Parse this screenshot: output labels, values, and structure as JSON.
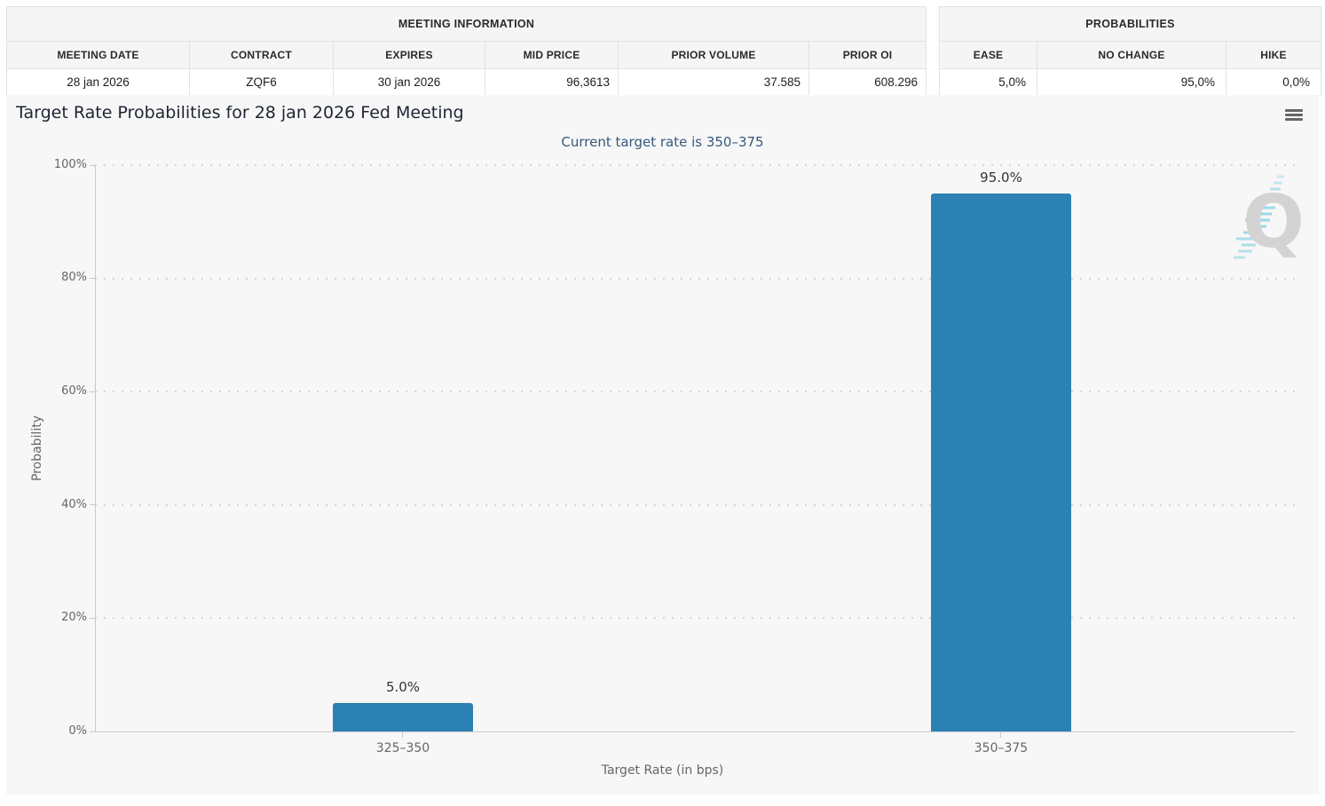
{
  "meeting_information": {
    "title": "MEETING INFORMATION",
    "columns": [
      "MEETING DATE",
      "CONTRACT",
      "EXPIRES",
      "MID PRICE",
      "PRIOR VOLUME",
      "PRIOR OI"
    ],
    "values": [
      "28 jan 2026",
      "ZQF6",
      "30 jan 2026",
      "96,3613",
      "37.585",
      "608.296"
    ]
  },
  "probabilities": {
    "title": "PROBABILITIES",
    "columns": [
      "EASE",
      "NO CHANGE",
      "HIKE"
    ],
    "values": [
      "5,0%",
      "95,0%",
      "0,0%"
    ]
  },
  "chart_data": {
    "type": "bar",
    "title": "Target Rate Probabilities for 28 jan 2026 Fed Meeting",
    "subtitle": "Current target rate is 350–375",
    "categories": [
      "325–350",
      "350–375"
    ],
    "values": [
      5.0,
      95.0
    ],
    "data_labels": [
      "5.0%",
      "95.0%"
    ],
    "xlabel": "Target Rate (in bps)",
    "ylabel": "Probability",
    "ylim": [
      0,
      100
    ],
    "yticks": [
      "0%",
      "20%",
      "40%",
      "60%",
      "80%",
      "100%"
    ],
    "grid": "horizontal dotted",
    "legend": "none",
    "bar_color": "#2b80b4"
  },
  "icons": {
    "menu": "hamburger-menu-icon",
    "watermark": "q-logo-watermark"
  },
  "watermark_letter": "Q",
  "colors": {
    "bar_blue": "#2b80b4",
    "subtitle_blue": "#36597d",
    "axis_text_gray": "#666666",
    "panel_background": "#f7f7f7",
    "table_header_background": "#f5f5f5",
    "watermark_cyan": "#90d4e8",
    "watermark_gray": "#d3d3d3"
  }
}
